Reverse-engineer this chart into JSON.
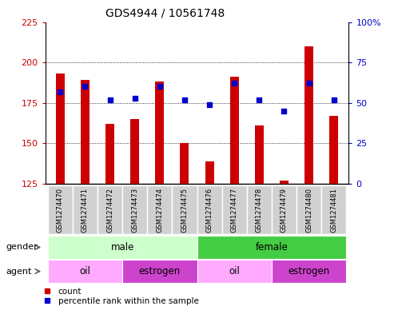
{
  "title": "GDS4944 / 10561748",
  "samples": [
    "GSM1274470",
    "GSM1274471",
    "GSM1274472",
    "GSM1274473",
    "GSM1274474",
    "GSM1274475",
    "GSM1274476",
    "GSM1274477",
    "GSM1274478",
    "GSM1274479",
    "GSM1274480",
    "GSM1274481"
  ],
  "counts": [
    193,
    189,
    162,
    165,
    188,
    150,
    139,
    191,
    161,
    127,
    210,
    167
  ],
  "percentile_ranks": [
    57,
    60,
    52,
    53,
    60,
    52,
    49,
    62,
    52,
    45,
    62,
    52
  ],
  "ylim_left": [
    125,
    225
  ],
  "ylim_right": [
    0,
    100
  ],
  "yticks_left": [
    125,
    150,
    175,
    200,
    225
  ],
  "yticks_right": [
    0,
    25,
    50,
    75,
    100
  ],
  "ytick_labels_right": [
    "0",
    "25",
    "50",
    "75",
    "100%"
  ],
  "bar_color": "#cc0000",
  "dot_color": "#0000cc",
  "bar_bottom": 125,
  "gender_groups": [
    {
      "label": "male",
      "start": 0,
      "end": 6,
      "color": "#ccffcc"
    },
    {
      "label": "female",
      "start": 6,
      "end": 12,
      "color": "#44cc44"
    }
  ],
  "agent_groups": [
    {
      "label": "oil",
      "start": 0,
      "end": 3,
      "color": "#ffaaff"
    },
    {
      "label": "estrogen",
      "start": 3,
      "end": 6,
      "color": "#cc44cc"
    },
    {
      "label": "oil",
      "start": 6,
      "end": 9,
      "color": "#ffaaff"
    },
    {
      "label": "estrogen",
      "start": 9,
      "end": 12,
      "color": "#cc44cc"
    }
  ],
  "bg_color": "#ffffff",
  "plot_bg": "#ffffff",
  "grid_color": "#000000",
  "tick_label_color_left": "#cc0000",
  "tick_label_color_right": "#0000cc",
  "title_fontsize": 10,
  "legend_fontsize": 8,
  "sample_label_fontsize": 6,
  "bar_width": 0.35
}
